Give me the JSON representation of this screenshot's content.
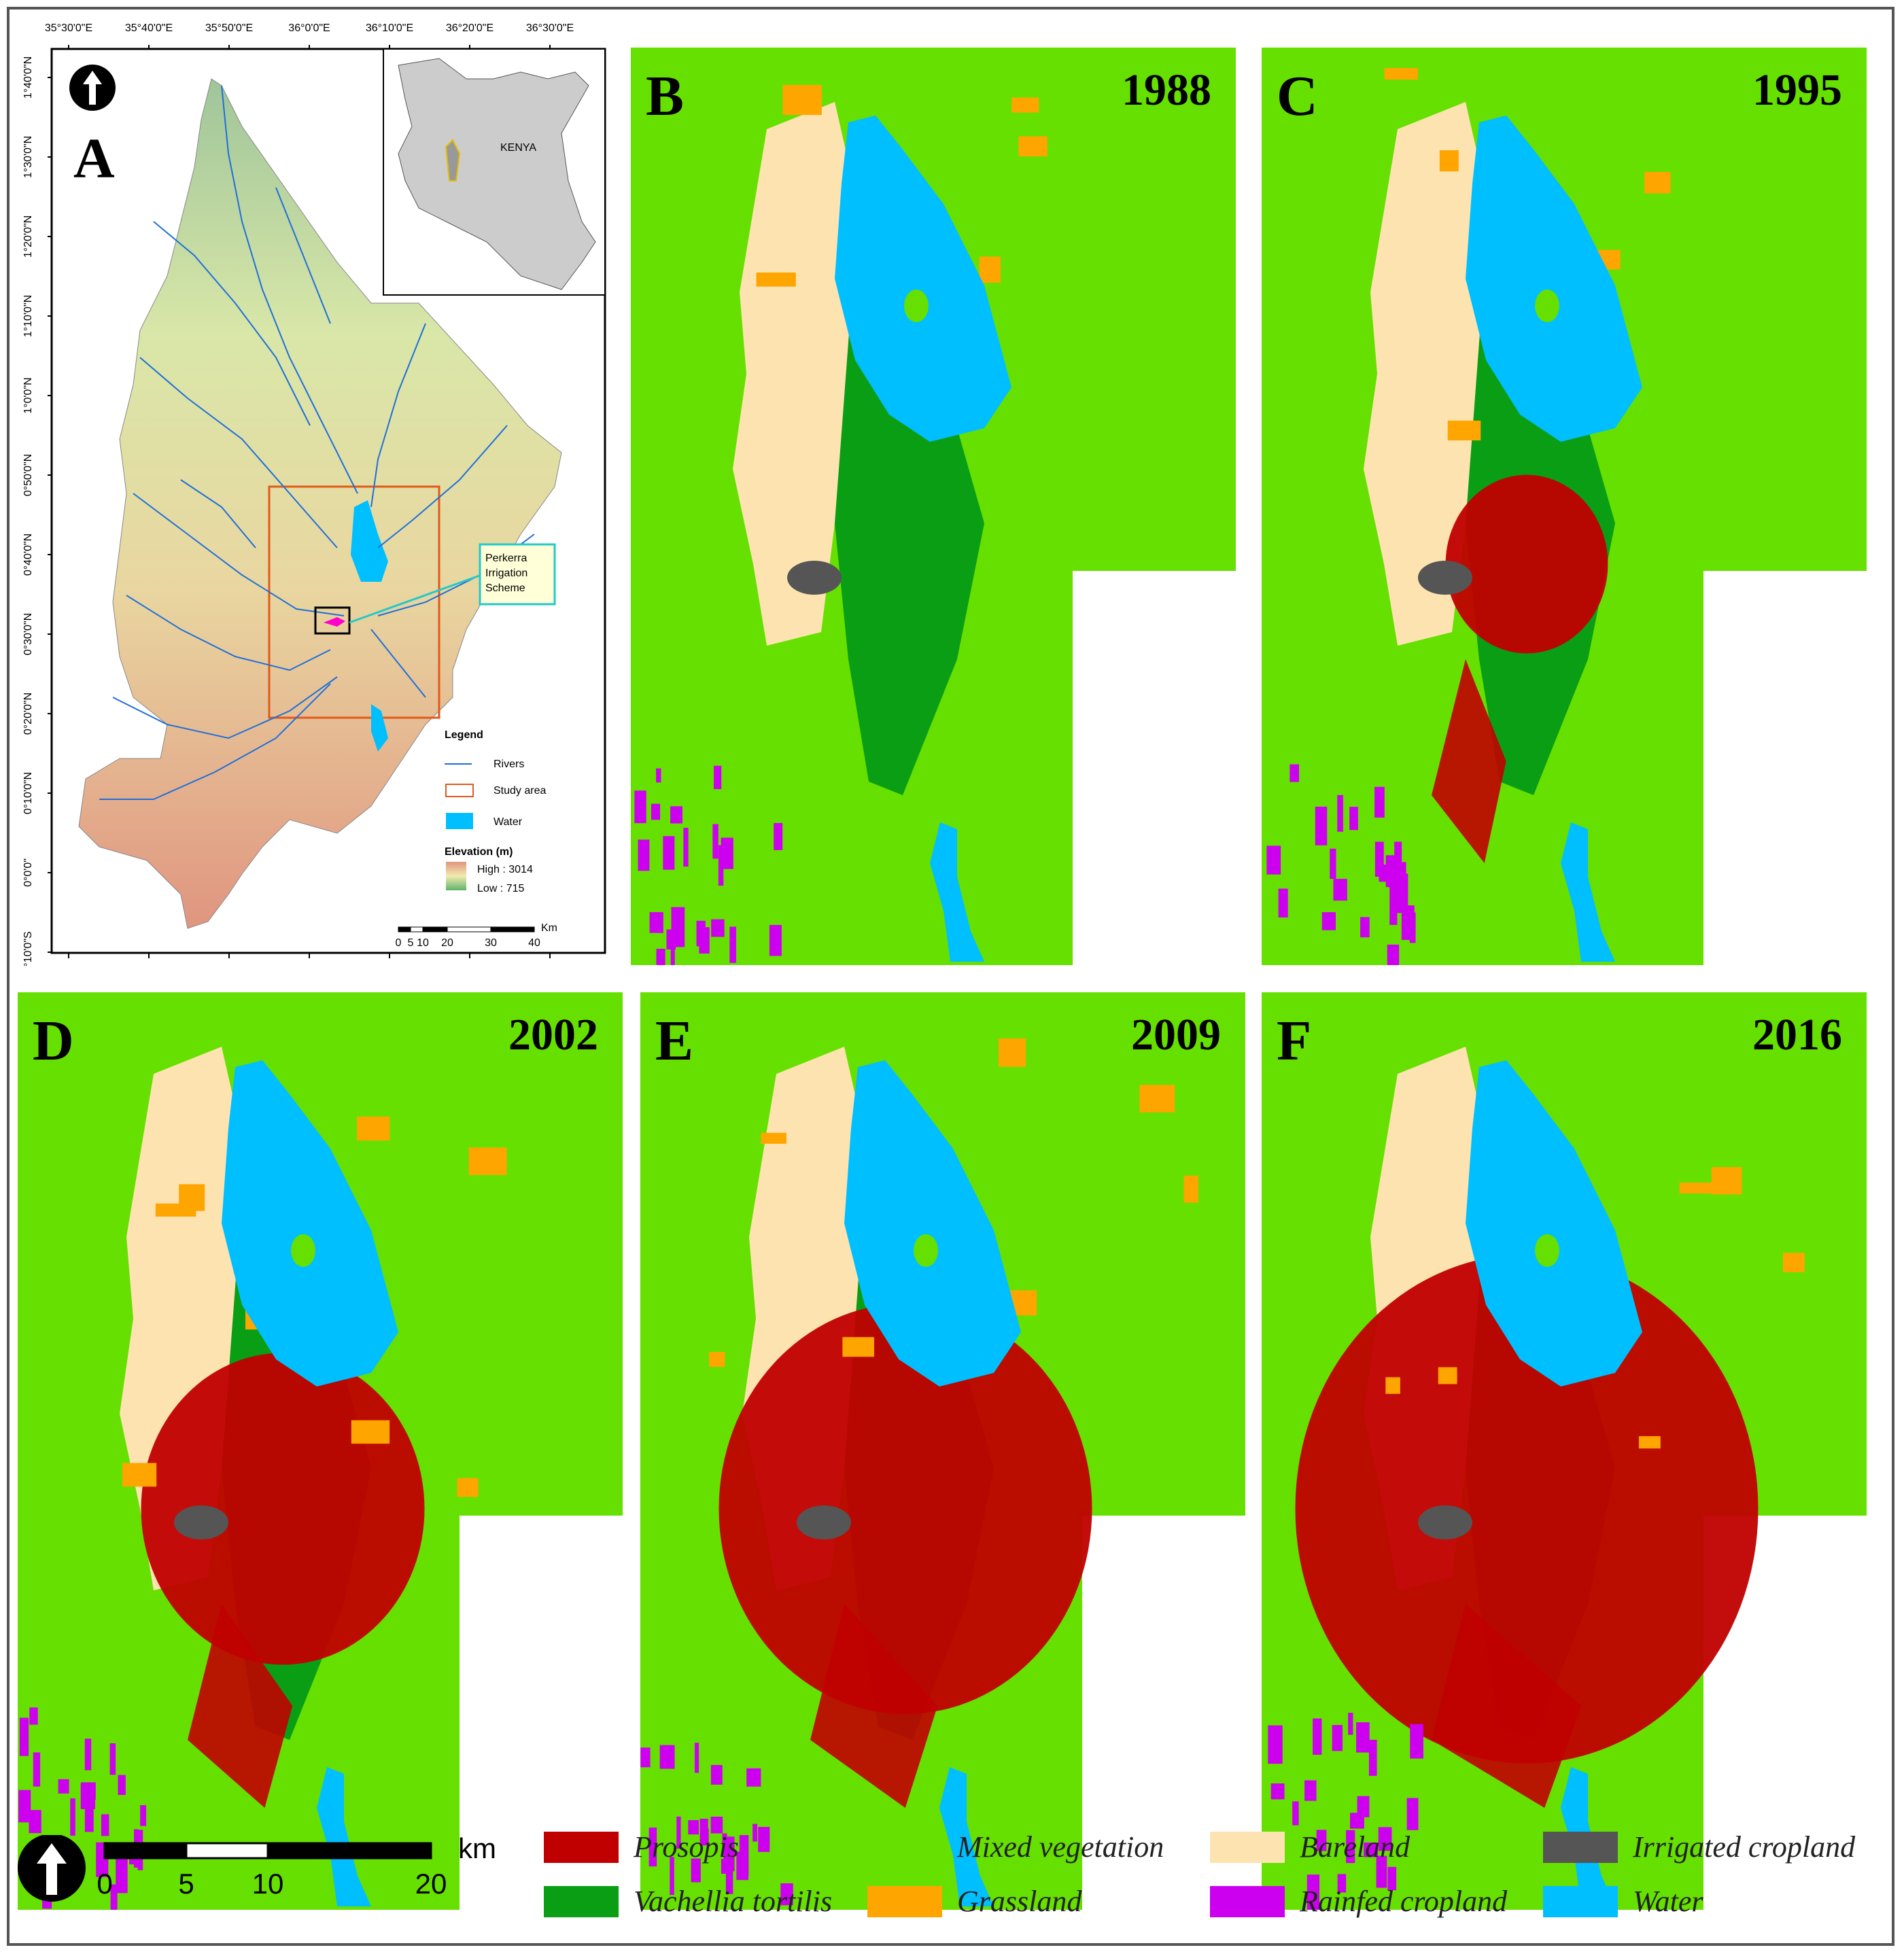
{
  "panels": [
    {
      "label": "A"
    },
    {
      "label": "B",
      "year": "1988"
    },
    {
      "label": "C",
      "year": "1995"
    },
    {
      "label": "D",
      "year": "2002"
    },
    {
      "label": "E",
      "year": "2009"
    },
    {
      "label": "F",
      "year": "2016"
    }
  ],
  "panel_a": {
    "lon_ticks": [
      "35°30'0\"E",
      "35°40'0\"E",
      "35°50'0\"E",
      "36°0'0\"E",
      "36°10'0\"E",
      "36°20'0\"E",
      "36°30'0\"E"
    ],
    "lat_ticks": [
      "1°40'0\"N",
      "1°30'0\"N",
      "1°20'0\"N",
      "1°10'0\"N",
      "1°0'0\"N",
      "0°50'0\"N",
      "0°40'0\"N",
      "0°30'0\"N",
      "0°20'0\"N",
      "0°10'0\"N",
      "0°0'0\"",
      "0°10'0\"S"
    ],
    "inset_label": "KENYA",
    "callout_lines": [
      "Perkerra",
      "Irrigation",
      "Scheme"
    ],
    "legend_title": "Legend",
    "legend_items": [
      "Rivers",
      "Study area",
      "Water"
    ],
    "elevation_title": "Elevation (m)",
    "elevation_high": "High : 3014",
    "elevation_low": "Low : 715",
    "scale_unit": "Km",
    "scale_ticks": [
      "0",
      "5",
      "10",
      "20",
      "30",
      "40"
    ]
  },
  "legend": [
    {
      "label": "Prosopis",
      "italic": true,
      "color": "#c00000"
    },
    {
      "label": "Mixed vegetation",
      "italic": true,
      "color": "#66e000"
    },
    {
      "label": "Bareland",
      "italic": true,
      "color": "#fde3b0"
    },
    {
      "label": "Irrigated cropland",
      "italic": true,
      "color": "#555555"
    },
    {
      "label": "Vachellia tortilis",
      "italic": true,
      "color": "#0a9e14"
    },
    {
      "label": "Grassland",
      "italic": true,
      "color": "#ffa500"
    },
    {
      "label": "Rainfed cropland",
      "italic": true,
      "color": "#cc00ee"
    },
    {
      "label": "Water",
      "italic": true,
      "color": "#00bfff"
    }
  ],
  "scalebar": {
    "unit": "km",
    "ticks": [
      "0",
      "5",
      "10",
      "20"
    ]
  },
  "colors": {
    "background": "#66e000",
    "water": "#00bfff",
    "prosopis": "#c00000",
    "bare": "#fde3b0",
    "vachellia": "#0a9e14",
    "grass": "#ffa500",
    "rainfed": "#cc00ee",
    "irrigated": "#555555"
  },
  "icons": [
    "north-arrow-icon"
  ]
}
